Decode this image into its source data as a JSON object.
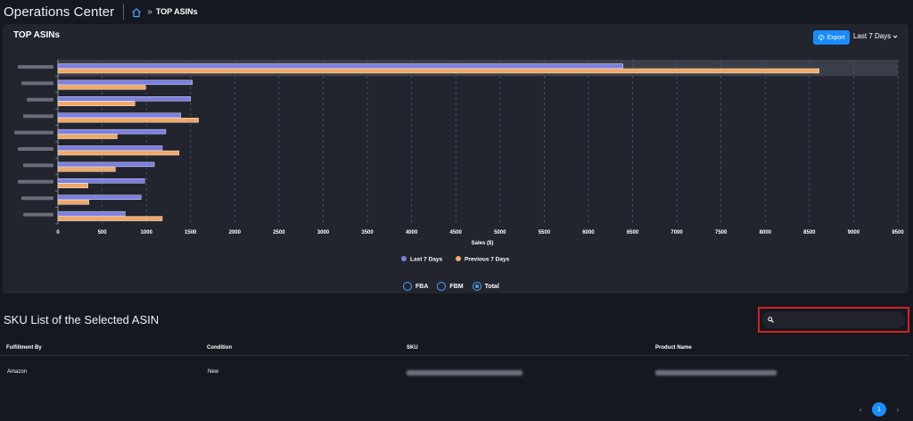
{
  "header": {
    "app_title": "Operations Center",
    "breadcrumb_separator": "»",
    "breadcrumb_current": "TOP ASINs"
  },
  "card": {
    "title": "TOP ASINs",
    "export_label": "Export",
    "period_label": "Last 7 Days"
  },
  "colors": {
    "last7": "#7b7fe0",
    "prev7": "#f0a868",
    "accent": "#1a8cff",
    "highlight": "#d02323"
  },
  "chart_data": {
    "type": "bar",
    "orientation": "horizontal",
    "categories": [
      "",
      "",
      "",
      "",
      "",
      "",
      "",
      "",
      "",
      ""
    ],
    "series": [
      {
        "name": "Last 7 Days",
        "values": [
          6390,
          1520,
          1500,
          1390,
          1220,
          1180,
          1090,
          980,
          940,
          760
        ]
      },
      {
        "name": "Previous 7 Days",
        "values": [
          8610,
          990,
          870,
          1590,
          670,
          1370,
          650,
          340,
          350,
          1180
        ]
      }
    ],
    "xlabel": "Sales ($)",
    "ylabel": "",
    "xlim": [
      0,
      9500
    ],
    "xticks": [
      "0",
      "500",
      "1000",
      "1500",
      "2000",
      "2500",
      "3000",
      "3500",
      "4000",
      "4500",
      "5000",
      "5500",
      "6000",
      "6500",
      "7000",
      "7500",
      "8000",
      "8500",
      "9000",
      "9500"
    ],
    "grid": true,
    "legend_position": "bottom"
  },
  "filters": {
    "options": [
      "FBA",
      "FBM",
      "Total"
    ],
    "selected": "Total"
  },
  "sku_section": {
    "title": "SKU List of the Selected ASIN",
    "search_placeholder": ""
  },
  "table": {
    "columns": [
      "Fulfillment By",
      "Condition",
      "SKU",
      "Product Name"
    ],
    "rows": [
      {
        "fulfillment": "Amazon",
        "condition": "New"
      }
    ]
  },
  "pagination": {
    "prev": "‹",
    "current": "1",
    "next": "›"
  }
}
